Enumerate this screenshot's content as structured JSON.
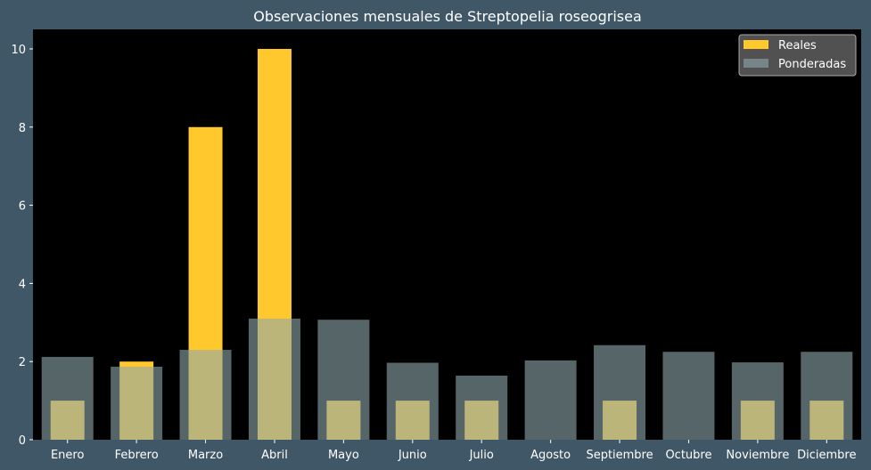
{
  "chart_data": {
    "type": "bar",
    "title": "Observaciones mensuales de Streptopelia roseogrisea",
    "xlabel": "",
    "ylabel": "",
    "categories": [
      "Enero",
      "Febrero",
      "Marzo",
      "Abril",
      "Mayo",
      "Junio",
      "Julio",
      "Agosto",
      "Septiembre",
      "Octubre",
      "Noviembre",
      "Diciembre"
    ],
    "ylim": [
      0,
      10.5
    ],
    "yticks": [
      0,
      2,
      4,
      6,
      8,
      10
    ],
    "grid": false,
    "legend_position": "top-right",
    "series": [
      {
        "name": "Reales",
        "color": "#ffc82c",
        "values": [
          1,
          2,
          8,
          10,
          1,
          1,
          1,
          0,
          1,
          0,
          1,
          1
        ]
      },
      {
        "name": "Ponderadas",
        "color": "#8ea8ad",
        "values": [
          2.12,
          1.87,
          2.3,
          3.1,
          3.07,
          1.97,
          1.64,
          2.03,
          2.42,
          2.25,
          1.98,
          2.25
        ]
      }
    ]
  },
  "colors": {
    "background": "#3f5766",
    "plot_background": "#000000",
    "text": "#ffffff"
  }
}
